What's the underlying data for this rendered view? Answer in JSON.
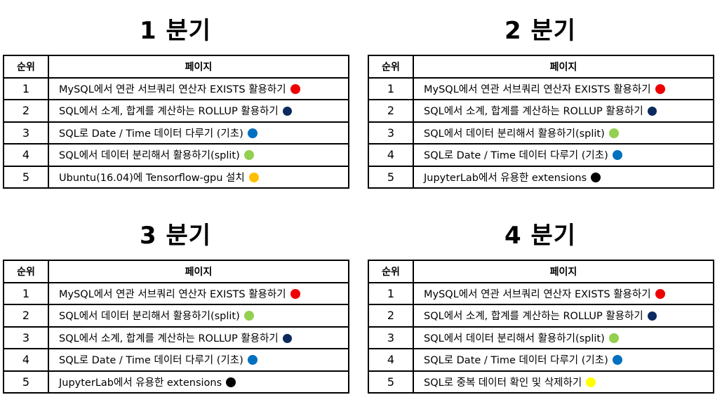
{
  "header": {
    "rank_label": "순위",
    "page_label": "페이지"
  },
  "quarters": [
    {
      "title": "1 분기",
      "rows": [
        {
          "rank": "1",
          "page": "MySQL에서 연관 서브쿼리 연산자 EXISTS 활용하기",
          "dot_color": "#ee0000",
          "dot_icon": "red-dot-icon"
        },
        {
          "rank": "2",
          "page": "SQL에서 소계, 합계를 계산하는 ROLLUP 활용하기",
          "dot_color": "#0c2a5e",
          "dot_icon": "navy-dot-icon"
        },
        {
          "rank": "3",
          "page": "SQL로 Date / Time 데이터 다루기 (기초)",
          "dot_color": "#0070c0",
          "dot_icon": "blue-dot-icon"
        },
        {
          "rank": "4",
          "page": "SQL에서 데이터 분리해서 활용하기(split)",
          "dot_color": "#92d050",
          "dot_icon": "green-dot-icon"
        },
        {
          "rank": "5",
          "page": "Ubuntu(16.04)에 Tensorflow-gpu 설치",
          "dot_color": "#ffc000",
          "dot_icon": "orange-dot-icon"
        }
      ]
    },
    {
      "title": "2 분기",
      "rows": [
        {
          "rank": "1",
          "page": "MySQL에서 연관 서브쿼리 연산자 EXISTS 활용하기",
          "dot_color": "#ee0000",
          "dot_icon": "red-dot-icon"
        },
        {
          "rank": "2",
          "page": "SQL에서 소계, 합계를 계산하는 ROLLUP 활용하기",
          "dot_color": "#0c2a5e",
          "dot_icon": "navy-dot-icon"
        },
        {
          "rank": "3",
          "page": "SQL에서 데이터 분리해서 활용하기(split)",
          "dot_color": "#92d050",
          "dot_icon": "green-dot-icon"
        },
        {
          "rank": "4",
          "page": "SQL로 Date / Time 데이터 다루기 (기초)",
          "dot_color": "#0070c0",
          "dot_icon": "blue-dot-icon"
        },
        {
          "rank": "5",
          "page": "JupyterLab에서 유용한 extensions",
          "dot_color": "#000000",
          "dot_icon": "black-dot-icon"
        }
      ]
    },
    {
      "title": "3 분기",
      "rows": [
        {
          "rank": "1",
          "page": "MySQL에서 연관 서브쿼리 연산자 EXISTS 활용하기",
          "dot_color": "#ee0000",
          "dot_icon": "red-dot-icon"
        },
        {
          "rank": "2",
          "page": "SQL에서 데이터 분리해서 활용하기(split)",
          "dot_color": "#92d050",
          "dot_icon": "green-dot-icon"
        },
        {
          "rank": "3",
          "page": "SQL에서 소계, 합계를 계산하는 ROLLUP 활용하기",
          "dot_color": "#0c2a5e",
          "dot_icon": "navy-dot-icon"
        },
        {
          "rank": "4",
          "page": "SQL로 Date / Time 데이터 다루기 (기초)",
          "dot_color": "#0070c0",
          "dot_icon": "blue-dot-icon"
        },
        {
          "rank": "5",
          "page": "JupyterLab에서 유용한 extensions",
          "dot_color": "#000000",
          "dot_icon": "black-dot-icon"
        }
      ]
    },
    {
      "title": "4 분기",
      "rows": [
        {
          "rank": "1",
          "page": "MySQL에서 연관 서브쿼리 연산자 EXISTS 활용하기",
          "dot_color": "#ee0000",
          "dot_icon": "red-dot-icon"
        },
        {
          "rank": "2",
          "page": "SQL에서 소계, 합계를 계산하는 ROLLUP 활용하기",
          "dot_color": "#0c2a5e",
          "dot_icon": "navy-dot-icon"
        },
        {
          "rank": "3",
          "page": "SQL에서 데이터 분리해서 활용하기(split)",
          "dot_color": "#92d050",
          "dot_icon": "green-dot-icon"
        },
        {
          "rank": "4",
          "page": "SQL로 Date / Time 데이터 다루기 (기초)",
          "dot_color": "#0070c0",
          "dot_icon": "blue-dot-icon"
        },
        {
          "rank": "5",
          "page": "SQL로 중복 데이터 확인 및 삭제하기",
          "dot_color": "#ffff00",
          "dot_icon": "yellow-dot-icon"
        }
      ]
    }
  ]
}
